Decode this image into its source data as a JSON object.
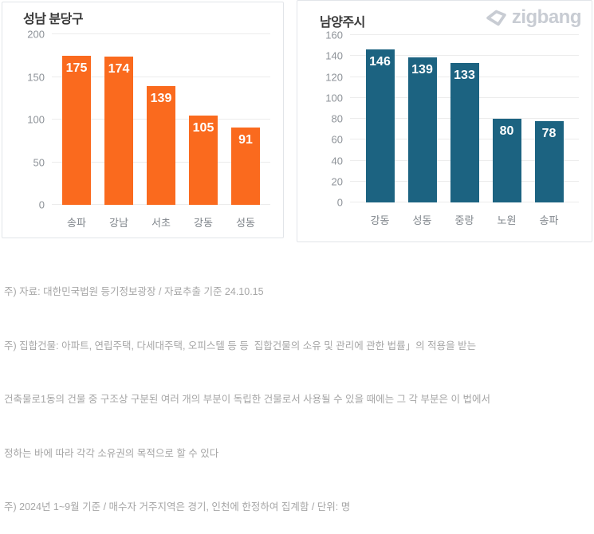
{
  "brand": {
    "logo_text": "zigbang",
    "logo_color": "#c8ccd3",
    "logo_icon": "zigbang-origami-mark"
  },
  "chart_data": [
    {
      "type": "bar",
      "title": "성남 분당구",
      "categories": [
        "송파",
        "강남",
        "서초",
        "강동",
        "성동"
      ],
      "values": [
        175,
        174,
        139,
        105,
        91
      ],
      "ylim": [
        0,
        200
      ],
      "ytick_interval": 50,
      "bar_color": "#fa6a1e",
      "value_label_color": "#ffffff",
      "grid": true,
      "value_labels": "inside-top",
      "legend": "none"
    },
    {
      "type": "bar",
      "title": "남양주시",
      "categories": [
        "강동",
        "성동",
        "중랑",
        "노원",
        "송파"
      ],
      "values": [
        146,
        139,
        133,
        80,
        78
      ],
      "ylim": [
        0,
        160
      ],
      "ytick_interval": 20,
      "bar_color": "#1c6381",
      "value_label_color": "#ffffff",
      "grid": true,
      "value_labels": "inside-top",
      "legend": "none"
    }
  ],
  "footnotes": [
    "주) 자료: 대한민국법원 등기정보광장 / 자료추출 기준 24.10.15",
    "주) 집합건물: 아파트, 연립주택, 다세대주택, 오피스텔 등 등  집합건물의 소유 및 관리에 관한 법률」의 적용을 받는",
    "건축물로1동의 건물 중 구조상 구분된 여러 개의 부분이 독립한 건물로서 사용될 수 있을 때에는 그 각 부분은 이 법에서",
    "정하는 바에 따라 각각 소유권의 목적으로 할 수 있다",
    "주) 2024년 1~9월 기준 / 매수자 거주지역은 경기, 인천에 한정하여 집계함 / 단위: 명"
  ]
}
